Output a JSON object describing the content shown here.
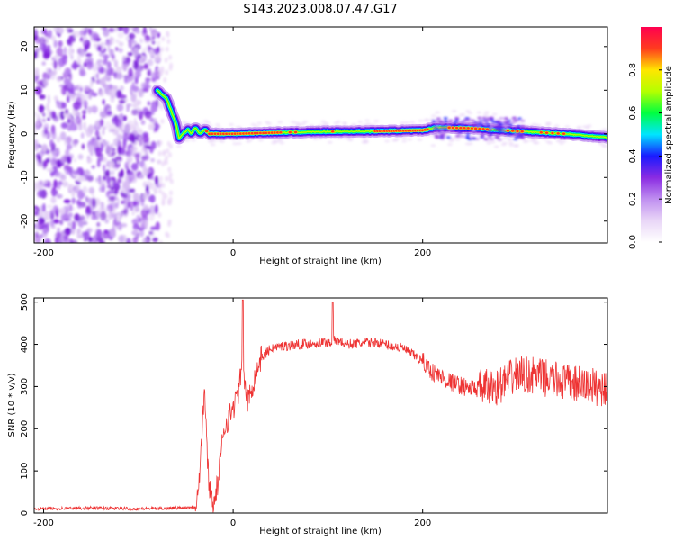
{
  "title": "S143.2023.008.07.47.G17",
  "colormap": [
    "#ffffff",
    "#e9d6f7",
    "#bf8ef0",
    "#8a2be2",
    "#1a1aff",
    "#00e5ff",
    "#00ff40",
    "#b4ff00",
    "#ffe600",
    "#ff3c1e",
    "#ff0050"
  ],
  "chart_data": [
    {
      "type": "heatmap",
      "xlabel": "Height of straight line (km)",
      "ylabel": "Frequency (Hz)",
      "xlim": [
        -210,
        395
      ],
      "ylim": [
        -25,
        24.5
      ],
      "xticks": [
        -200,
        0,
        200
      ],
      "yticks": [
        -20,
        -10,
        0,
        10,
        20
      ],
      "colorbar": {
        "label": "Normalized spectral amplitude",
        "range": [
          0,
          1
        ],
        "ticks": [
          "0.0",
          "0.2",
          "0.4",
          "0.6",
          "0.8"
        ]
      },
      "ridge": {
        "x": [
          -80,
          -75,
          -70,
          -65,
          -60,
          -57,
          -53,
          -48,
          -44,
          -40,
          -35,
          -30,
          -25,
          0,
          50,
          100,
          150,
          200,
          215,
          250,
          300,
          350,
          395
        ],
        "freq": [
          10,
          9,
          8,
          5,
          2,
          -1,
          0,
          1,
          0,
          1.5,
          0,
          1,
          0,
          0,
          0.3,
          0.5,
          0.6,
          0.8,
          1.5,
          1.3,
          0.6,
          0,
          -0.8
        ]
      },
      "noise_region_x": [
        -210,
        -78
      ]
    },
    {
      "type": "line",
      "xlabel": "Height of straight line (km)",
      "ylabel": "SNR (10 * v/v)",
      "xlim": [
        -210,
        395
      ],
      "ylim": [
        0,
        510
      ],
      "xticks": [
        -200,
        0,
        200
      ],
      "yticks": [
        0,
        100,
        200,
        300,
        400,
        500
      ],
      "color": "#ee3333",
      "series": [
        {
          "x": [
            -210,
            -150,
            -100,
            -60,
            -40,
            -35,
            -32,
            -30,
            -28,
            -25,
            -20,
            -15,
            -10,
            0,
            5,
            10,
            15,
            20,
            25,
            30,
            40,
            50,
            70,
            100,
            110,
            120,
            150,
            180,
            200,
            210,
            230,
            250,
            280,
            300,
            320,
            350,
            380,
            395
          ],
          "values": [
            10,
            12,
            10,
            12,
            15,
            100,
            230,
            300,
            160,
            60,
            20,
            90,
            200,
            250,
            280,
            350,
            260,
            300,
            340,
            370,
            390,
            395,
            400,
            405,
            410,
            400,
            405,
            390,
            360,
            335,
            310,
            295,
            300,
            330,
            325,
            310,
            300,
            295
          ]
        }
      ]
    }
  ]
}
